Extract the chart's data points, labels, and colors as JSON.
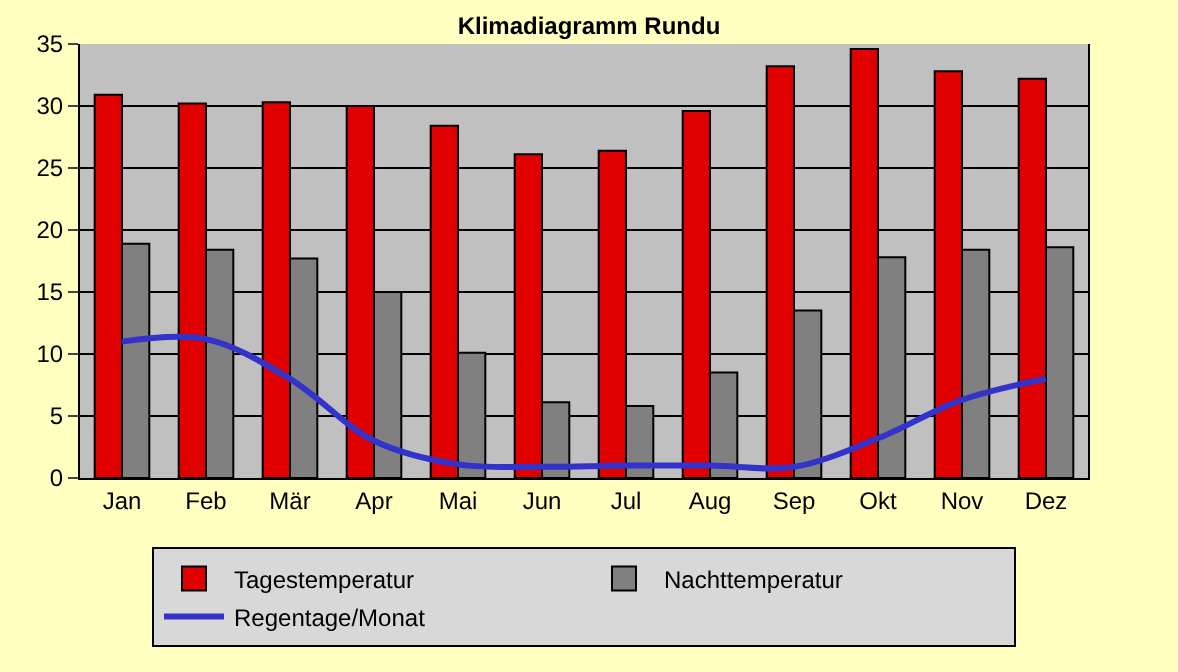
{
  "chart_data": {
    "type": "bar",
    "title": "Klimadiagramm Rundu",
    "categories": [
      "Jan",
      "Feb",
      "Mär",
      "Apr",
      "Mai",
      "Jun",
      "Jul",
      "Aug",
      "Sep",
      "Okt",
      "Nov",
      "Dez"
    ],
    "series": [
      {
        "name": "Tagestemperatur",
        "color": "#e00000",
        "values": [
          30.9,
          30.2,
          30.3,
          30.0,
          28.4,
          26.1,
          26.4,
          29.6,
          33.2,
          34.6,
          32.8,
          32.2
        ]
      },
      {
        "name": "Nachttemperatur",
        "color": "#808080",
        "values": [
          18.9,
          18.4,
          17.7,
          15.0,
          10.1,
          6.1,
          5.8,
          8.5,
          13.5,
          17.8,
          18.4,
          18.6
        ]
      },
      {
        "name": "Regentage/Monat",
        "type": "line",
        "color": "#3333cc",
        "values": [
          11.0,
          11.2,
          8.0,
          3.0,
          1.1,
          0.9,
          1.0,
          1.0,
          0.9,
          3.2,
          6.3,
          8.0
        ]
      }
    ],
    "ylim": [
      0,
      35
    ],
    "yticks": [
      0,
      5,
      10,
      15,
      20,
      25,
      30,
      35
    ],
    "grid": "y",
    "legend": "bottom",
    "marker": "none",
    "line_style": "solid"
  }
}
